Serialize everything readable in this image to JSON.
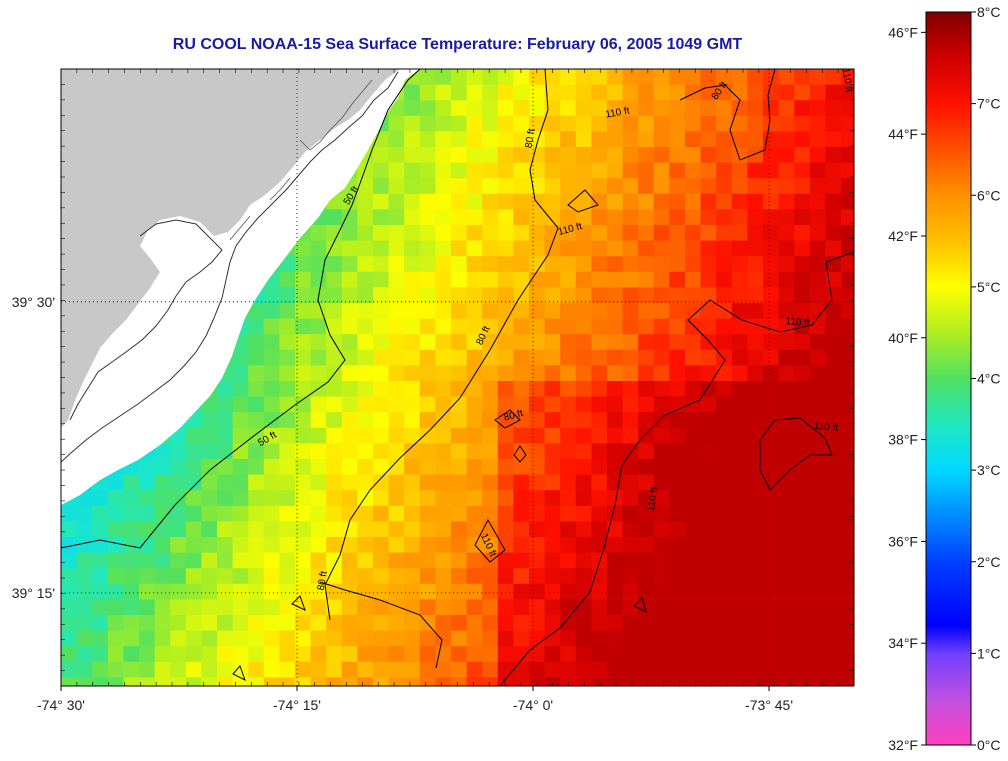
{
  "title": "RU COOL  NOAA-15  Sea Surface Temperature:  February 06, 2005 1049 GMT",
  "map": {
    "lon_range": [
      -74.5,
      -73.66
    ],
    "lat_range": [
      39.17,
      39.7
    ],
    "x_ticks": [
      {
        "lon": -74.5,
        "label": "-74° 30'"
      },
      {
        "lon": -74.25,
        "label": "-74° 15'"
      },
      {
        "lon": -74.0,
        "label": "-74° 0'"
      },
      {
        "lon": -73.75,
        "label": "-73° 45'"
      }
    ],
    "y_ticks": [
      {
        "lat": 39.5,
        "label": "39° 30'"
      },
      {
        "lat": 39.25,
        "label": "39° 15'"
      }
    ],
    "grid": "dotted",
    "land_color": "#c8c8c8",
    "coastal_white_color": "#ffffff"
  },
  "contour_labels": [
    {
      "text": "50 ft",
      "lon": -74.19,
      "lat": 39.59,
      "angle": -58
    },
    {
      "text": "50 ft",
      "lon": -74.28,
      "lat": 39.38,
      "angle": -30
    },
    {
      "text": "80 ft",
      "lon": -74.0,
      "lat": 39.64,
      "angle": -80
    },
    {
      "text": "80 ft",
      "lon": -74.05,
      "lat": 39.47,
      "angle": -65
    },
    {
      "text": "80 ft",
      "lon": -74.02,
      "lat": 39.4,
      "angle": -15
    },
    {
      "text": "80 ft",
      "lon": -74.22,
      "lat": 39.26,
      "angle": -80
    },
    {
      "text": "80 ft",
      "lon": -73.8,
      "lat": 39.68,
      "angle": -55
    },
    {
      "text": "110 ft",
      "lon": -73.91,
      "lat": 39.66,
      "angle": -10
    },
    {
      "text": "110 ft",
      "lon": -73.67,
      "lat": 39.69,
      "angle": 80
    },
    {
      "text": "110 ft",
      "lon": -73.96,
      "lat": 39.56,
      "angle": -15
    },
    {
      "text": "110 ft",
      "lon": -73.72,
      "lat": 39.48,
      "angle": 5
    },
    {
      "text": "110 ft",
      "lon": -73.69,
      "lat": 39.39,
      "angle": 5
    },
    {
      "text": "110 ft",
      "lon": -73.87,
      "lat": 39.33,
      "angle": -80
    },
    {
      "text": "110 ft",
      "lon": -74.05,
      "lat": 39.29,
      "angle": 65
    }
  ],
  "colorbar": {
    "f_labels": [
      "46°F",
      "44°F",
      "42°F",
      "40°F",
      "38°F",
      "36°F",
      "34°F",
      "32°F"
    ],
    "c_labels": [
      "8°C",
      "7°C",
      "6°C",
      "5°C",
      "4°C",
      "3°C",
      "2°C",
      "1°C",
      "0°C"
    ],
    "f_values": [
      46,
      44,
      42,
      40,
      38,
      36,
      34,
      32
    ],
    "c_values": [
      8,
      7,
      6,
      5,
      4,
      3,
      2,
      1,
      0
    ],
    "range_f": [
      32,
      46.4
    ],
    "stops": [
      {
        "c": 0,
        "color": "#ff40c0"
      },
      {
        "c": 0.5,
        "color": "#c050e0"
      },
      {
        "c": 1,
        "color": "#7040ff"
      },
      {
        "c": 1.3,
        "color": "#0000ff"
      },
      {
        "c": 2,
        "color": "#0040ff"
      },
      {
        "c": 3,
        "color": "#00d8ff"
      },
      {
        "c": 3.5,
        "color": "#20e8c0"
      },
      {
        "c": 4,
        "color": "#50e060"
      },
      {
        "c": 4.5,
        "color": "#b0ee20"
      },
      {
        "c": 5,
        "color": "#ffff00"
      },
      {
        "c": 5.5,
        "color": "#ffc000"
      },
      {
        "c": 6,
        "color": "#ff9000"
      },
      {
        "c": 6.5,
        "color": "#ff5000"
      },
      {
        "c": 7,
        "color": "#ff1000"
      },
      {
        "c": 7.5,
        "color": "#d00000"
      },
      {
        "c": 8,
        "color": "#800000"
      }
    ]
  }
}
